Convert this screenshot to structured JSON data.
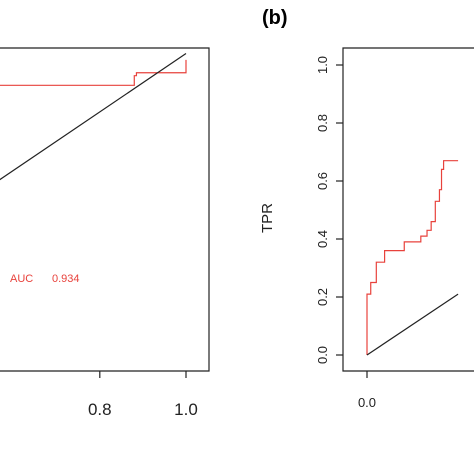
{
  "chart_data": [
    {
      "type": "line",
      "panel_label": "",
      "title": "",
      "xlabel": "",
      "ylabel": "",
      "xlim": [
        0.0,
        1.0
      ],
      "ylim": [
        0.0,
        1.0
      ],
      "x_ticks": [
        0.8,
        1.0
      ],
      "x_tick_labels": [
        "0.8",
        "1.0"
      ],
      "y_ticks": [],
      "y_tick_labels": [],
      "grid": false,
      "annotation": {
        "label": "AUC",
        "value": "0.934"
      },
      "series": [
        {
          "role": "roc-curve",
          "color": "#e8423c",
          "x": [
            0.45,
            0.88,
            0.88,
            0.885,
            0.885,
            1.0,
            1.0
          ],
          "y": [
            0.891,
            0.891,
            0.924,
            0.924,
            0.934,
            0.934,
            0.978
          ]
        },
        {
          "role": "chance-diagonal",
          "color": "#222222",
          "x": [
            0.0,
            1.0
          ],
          "y": [
            0.0,
            1.0
          ]
        }
      ]
    },
    {
      "type": "line",
      "panel_label": "(b)",
      "title": "",
      "xlabel": "",
      "ylabel": "TPR",
      "xlim": [
        0.0,
        1.0
      ],
      "ylim": [
        0.0,
        1.0
      ],
      "x_ticks": [
        0.0
      ],
      "x_tick_labels": [
        "0.0"
      ],
      "y_ticks": [
        0.0,
        0.2,
        0.4,
        0.6,
        0.8,
        1.0
      ],
      "y_tick_labels": [
        "0.0",
        "0.2",
        "0.4",
        "0.6",
        "0.8",
        "1.0"
      ],
      "grid": false,
      "series": [
        {
          "role": "roc-curve",
          "color": "#e8423c",
          "x": [
            0.0,
            0.0,
            0.018,
            0.018,
            0.045,
            0.045,
            0.085,
            0.085,
            0.14,
            0.14,
            0.18,
            0.18,
            0.225,
            0.225,
            0.26,
            0.26,
            0.29,
            0.29,
            0.31,
            0.31,
            0.33,
            0.33,
            0.35,
            0.35,
            0.36,
            0.36,
            0.37,
            0.37,
            0.44
          ],
          "y": [
            0.0,
            0.21,
            0.21,
            0.25,
            0.25,
            0.32,
            0.32,
            0.36,
            0.36,
            0.36,
            0.36,
            0.39,
            0.39,
            0.39,
            0.39,
            0.41,
            0.41,
            0.43,
            0.43,
            0.46,
            0.46,
            0.53,
            0.53,
            0.57,
            0.57,
            0.64,
            0.64,
            0.67,
            0.67
          ]
        },
        {
          "role": "chance-diagonal",
          "color": "#222222",
          "x": [
            0.0,
            0.44
          ],
          "y": [
            0.0,
            0.21
          ]
        }
      ]
    }
  ]
}
